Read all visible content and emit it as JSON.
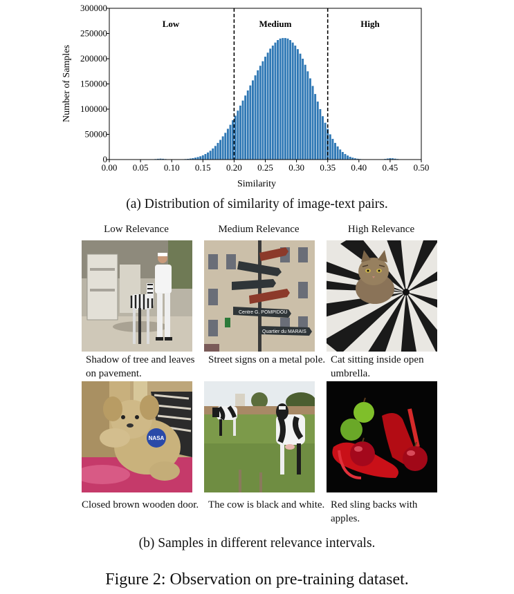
{
  "chart_data": {
    "type": "bar",
    "xlabel": "Similarity",
    "ylabel": "Number of Samples",
    "xlim": [
      0.0,
      0.5
    ],
    "ylim": [
      0,
      300000
    ],
    "x_ticks": [
      "0.00",
      "0.05",
      "0.10",
      "0.15",
      "0.20",
      "0.25",
      "0.30",
      "0.35",
      "0.40",
      "0.45",
      "0.50"
    ],
    "y_ticks": [
      "0",
      "50000",
      "100000",
      "150000",
      "200000",
      "250000",
      "300000"
    ],
    "thresholds": [
      0.2,
      0.35
    ],
    "regions": [
      "Low",
      "Medium",
      "High"
    ],
    "bin_width": 0.004,
    "x": [
      0.072,
      0.076,
      0.08,
      0.084,
      0.088,
      0.092,
      0.096,
      0.1,
      0.104,
      0.108,
      0.112,
      0.116,
      0.12,
      0.124,
      0.128,
      0.132,
      0.136,
      0.14,
      0.144,
      0.148,
      0.152,
      0.156,
      0.16,
      0.164,
      0.168,
      0.172,
      0.176,
      0.18,
      0.184,
      0.188,
      0.192,
      0.196,
      0.2,
      0.204,
      0.208,
      0.212,
      0.216,
      0.22,
      0.224,
      0.228,
      0.232,
      0.236,
      0.24,
      0.244,
      0.248,
      0.252,
      0.256,
      0.26,
      0.264,
      0.268,
      0.272,
      0.276,
      0.28,
      0.284,
      0.288,
      0.292,
      0.296,
      0.3,
      0.304,
      0.308,
      0.312,
      0.316,
      0.32,
      0.324,
      0.328,
      0.332,
      0.336,
      0.34,
      0.344,
      0.348,
      0.352,
      0.356,
      0.36,
      0.364,
      0.368,
      0.372,
      0.376,
      0.38,
      0.384,
      0.388,
      0.392,
      0.396,
      0.4,
      0.404,
      0.408,
      0.412,
      0.416,
      0.42,
      0.424,
      0.428,
      0.432,
      0.436,
      0.44,
      0.444,
      0.448,
      0.452,
      0.456,
      0.46,
      0.464,
      0.468,
      0.472,
      0.476,
      0.48
    ],
    "values": [
      1000,
      1500,
      1800,
      1500,
      1000,
      500,
      300,
      300,
      300,
      400,
      500,
      700,
      1000,
      1400,
      2000,
      2800,
      3800,
      5000,
      6500,
      8500,
      11000,
      14000,
      17500,
      22000,
      27000,
      33000,
      39000,
      46000,
      53000,
      61000,
      69000,
      78000,
      87000,
      97000,
      107000,
      117000,
      127000,
      137000,
      147000,
      157000,
      167000,
      177000,
      186000,
      195000,
      204000,
      212000,
      220000,
      226000,
      232000,
      237000,
      240000,
      241000,
      241000,
      240000,
      237000,
      232000,
      226000,
      219000,
      210000,
      200000,
      188000,
      175000,
      161000,
      146000,
      130000,
      115000,
      100000,
      86000,
      73000,
      61000,
      50000,
      41000,
      33000,
      26000,
      20000,
      15000,
      11000,
      8000,
      5500,
      3800,
      2500,
      1600,
      1000,
      700,
      500,
      400,
      300,
      300,
      300,
      300,
      400,
      700,
      1200,
      2000,
      2800,
      2500,
      1800,
      1100,
      600,
      300,
      150,
      80,
      40
    ]
  },
  "captions": {
    "sub_a": "(a) Distribution of similarity of image-text pairs.",
    "sub_b": "(b) Samples in different relevance intervals.",
    "figure": "Figure 2: Observation on pre-training dataset."
  },
  "columns": {
    "low": "Low Relevance",
    "medium": "Medium Relevance",
    "high": "High Relevance"
  },
  "samples": {
    "r1_low": "Shadow of tree and leaves on pavement.",
    "r1_medium": "Street signs on a metal pole.",
    "r1_high": "Cat sitting inside open umbrella.",
    "r2_low": "Closed brown wooden door.",
    "r2_medium": "The cow is black and white.",
    "r2_high": "Red sling backs with apples."
  },
  "image_text": {
    "nasa": "NASA",
    "street_1": "Centre G. POMPIDOU",
    "street_2": "Quartier du MARAIS"
  }
}
